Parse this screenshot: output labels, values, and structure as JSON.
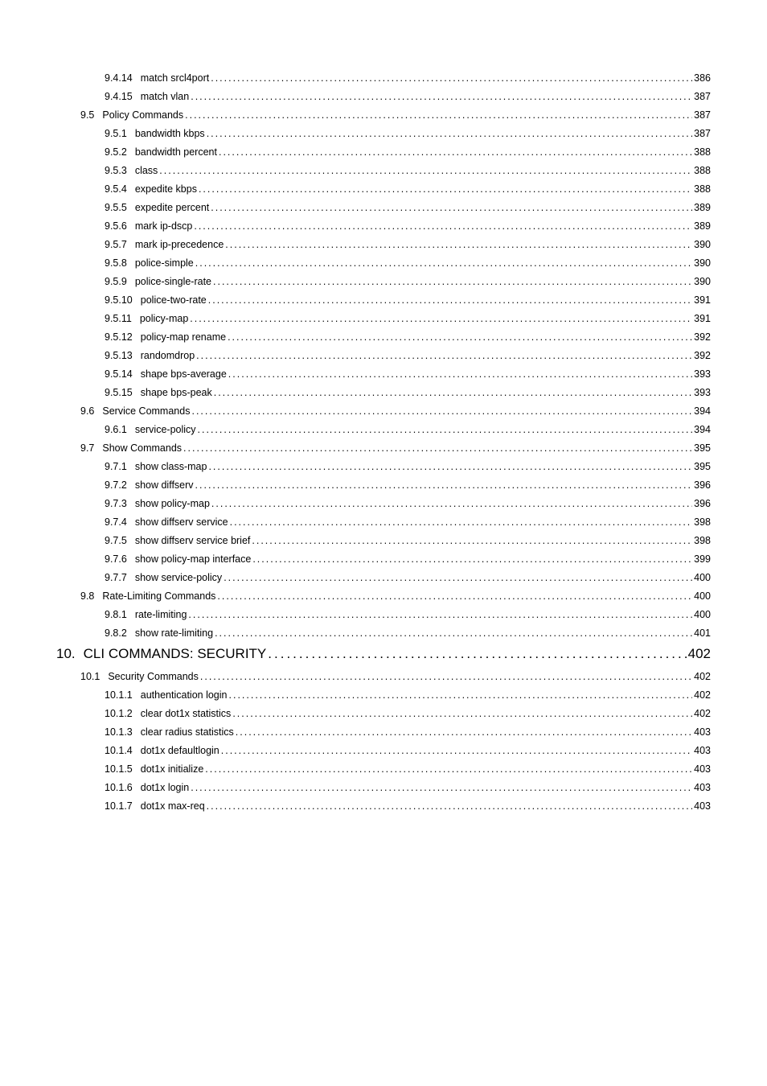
{
  "font": {
    "body_size_pt": 10,
    "heading_size_pt": 13,
    "color": "#000000"
  },
  "background_color": "#ffffff",
  "leader_char": ".",
  "entries": [
    {
      "level": 3,
      "num": "9.4.14",
      "title": "match srcl4port",
      "page": "386"
    },
    {
      "level": 3,
      "num": "9.4.15",
      "title": "match vlan",
      "page": "387"
    },
    {
      "level": 2,
      "num": "9.5",
      "title": "Policy Commands",
      "page": "387"
    },
    {
      "level": 3,
      "num": "9.5.1",
      "title": "bandwidth kbps",
      "page": "387"
    },
    {
      "level": 3,
      "num": "9.5.2",
      "title": "bandwidth percent",
      "page": "388"
    },
    {
      "level": 3,
      "num": "9.5.3",
      "title": "class",
      "page": "388"
    },
    {
      "level": 3,
      "num": "9.5.4",
      "title": "expedite kbps",
      "page": "388"
    },
    {
      "level": 3,
      "num": "9.5.5",
      "title": "expedite percent",
      "page": "389"
    },
    {
      "level": 3,
      "num": "9.5.6",
      "title": "mark ip-dscp",
      "page": "389"
    },
    {
      "level": 3,
      "num": "9.5.7",
      "title": "mark ip-precedence",
      "page": "390"
    },
    {
      "level": 3,
      "num": "9.5.8",
      "title": "police-simple",
      "page": "390"
    },
    {
      "level": 3,
      "num": "9.5.9",
      "title": "police-single-rate",
      "page": "390"
    },
    {
      "level": 3,
      "num": "9.5.10",
      "title": "police-two-rate",
      "page": "391"
    },
    {
      "level": 3,
      "num": "9.5.11",
      "title": "policy-map",
      "page": "391"
    },
    {
      "level": 3,
      "num": "9.5.12",
      "title": "policy-map rename",
      "page": "392"
    },
    {
      "level": 3,
      "num": "9.5.13",
      "title": "randomdrop",
      "page": "392"
    },
    {
      "level": 3,
      "num": "9.5.14",
      "title": "shape bps-average",
      "page": "393"
    },
    {
      "level": 3,
      "num": "9.5.15",
      "title": "shape bps-peak",
      "page": "393"
    },
    {
      "level": 2,
      "num": "9.6",
      "title": "Service Commands",
      "page": "394"
    },
    {
      "level": 3,
      "num": "9.6.1",
      "title": "service-policy",
      "page": "394"
    },
    {
      "level": 2,
      "num": "9.7",
      "title": "Show Commands",
      "page": "395"
    },
    {
      "level": 3,
      "num": "9.7.1",
      "title": "show class-map",
      "page": "395"
    },
    {
      "level": 3,
      "num": "9.7.2",
      "title": "show diffserv",
      "page": "396"
    },
    {
      "level": 3,
      "num": "9.7.3",
      "title": "show policy-map",
      "page": "396"
    },
    {
      "level": 3,
      "num": "9.7.4",
      "title": "show diffserv service",
      "page": "398"
    },
    {
      "level": 3,
      "num": "9.7.5",
      "title": "show diffserv service brief",
      "page": "398"
    },
    {
      "level": 3,
      "num": "9.7.6",
      "title": "show policy-map interface",
      "page": "399"
    },
    {
      "level": 3,
      "num": "9.7.7",
      "title": "show service-policy",
      "page": "400"
    },
    {
      "level": 2,
      "num": "9.8",
      "title": "Rate-Limiting Commands",
      "page": "400"
    },
    {
      "level": 3,
      "num": "9.8.1",
      "title": "rate-limiting",
      "page": "400"
    },
    {
      "level": 3,
      "num": "9.8.2",
      "title": "show rate-limiting",
      "page": "401"
    },
    {
      "level": 1,
      "num": "10.",
      "title": "CLI COMMANDS: SECURITY",
      "page": "402"
    },
    {
      "level": 2,
      "num": "10.1",
      "title": "Security Commands",
      "page": "402"
    },
    {
      "level": 3,
      "num": "10.1.1",
      "title": "authentication login",
      "page": "402"
    },
    {
      "level": 3,
      "num": "10.1.2",
      "title": "clear dot1x statistics",
      "page": "402"
    },
    {
      "level": 3,
      "num": "10.1.3",
      "title": "clear radius statistics",
      "page": "403"
    },
    {
      "level": 3,
      "num": "10.1.4",
      "title": "dot1x defaultlogin",
      "page": "403"
    },
    {
      "level": 3,
      "num": "10.1.5",
      "title": "dot1x initialize",
      "page": "403"
    },
    {
      "level": 3,
      "num": "10.1.6",
      "title": "dot1x login",
      "page": "403"
    },
    {
      "level": 3,
      "num": "10.1.7",
      "title": "dot1x max-req",
      "page": "403"
    }
  ]
}
